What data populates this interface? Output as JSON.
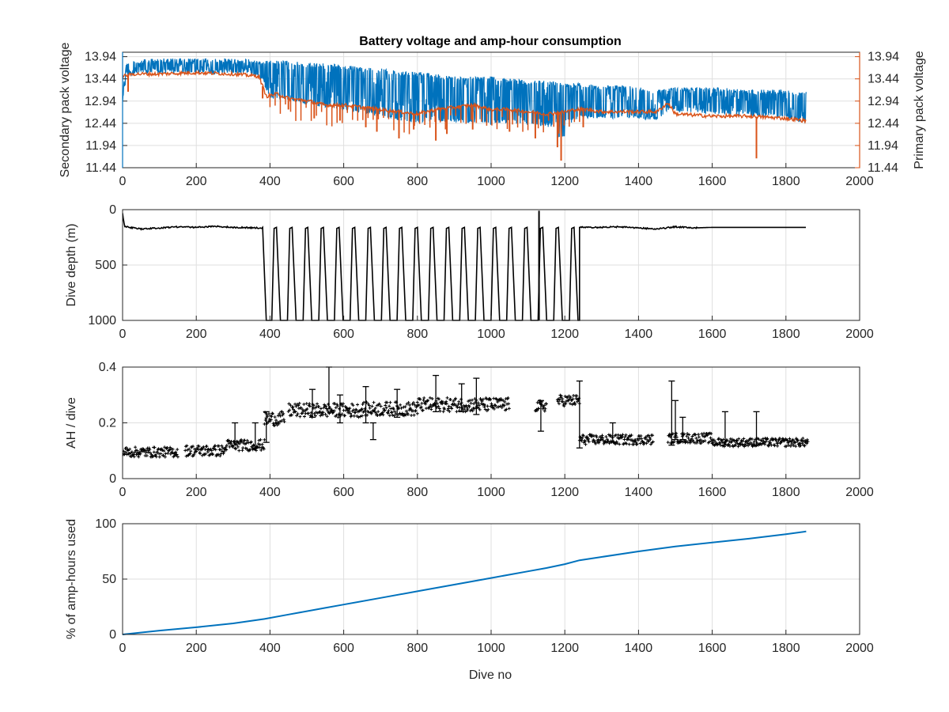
{
  "figure": {
    "title": "Battery voltage and amp-hour consumption",
    "xlabel": "Dive no"
  },
  "colors": {
    "secondary": "#0072BD",
    "primary": "#D95319",
    "black": "#000000",
    "grid": "#dfdfdf",
    "axis": "#262626"
  },
  "chart_data": [
    {
      "type": "line",
      "title": "Battery voltage and amp-hour consumption",
      "xlabel": "",
      "ylabel": "Secondary pack voltage",
      "ylabel_right": "Primary pack voltage",
      "xlim": [
        0,
        2000
      ],
      "ylim": [
        11.44,
        14.04
      ],
      "xticks": [
        0,
        200,
        400,
        600,
        800,
        1000,
        1200,
        1400,
        1600,
        1800,
        2000
      ],
      "yticks": [
        11.44,
        11.94,
        12.44,
        12.94,
        13.44,
        13.94
      ],
      "ytick_labels": [
        "11.44",
        "11.94",
        "12.44",
        "12.94",
        "13.44",
        "13.94"
      ],
      "grid": true,
      "series": [
        {
          "name": "Secondary pack voltage",
          "axis": "left",
          "color": "#0072BD",
          "x": [
            0,
            10,
            30,
            60,
            100,
            150,
            200,
            250,
            300,
            350,
            380,
            400,
            450,
            500,
            550,
            600,
            650,
            700,
            750,
            800,
            850,
            900,
            950,
            1000,
            1050,
            1100,
            1150,
            1200,
            1250,
            1300,
            1350,
            1400,
            1450,
            1480,
            1520,
            1600,
            1700,
            1800,
            1850
          ],
          "low": [
            12.9,
            13.45,
            13.55,
            13.55,
            13.55,
            13.55,
            13.55,
            13.55,
            13.55,
            13.55,
            13.4,
            13.0,
            12.95,
            12.85,
            12.8,
            12.75,
            12.65,
            12.6,
            12.5,
            12.45,
            12.5,
            12.45,
            12.45,
            12.4,
            12.45,
            12.4,
            12.35,
            12.4,
            12.55,
            12.55,
            12.55,
            12.55,
            12.5,
            12.7,
            12.7,
            12.65,
            12.6,
            12.55,
            12.45
          ],
          "high": [
            13.2,
            13.8,
            13.85,
            13.88,
            13.9,
            13.9,
            13.9,
            13.9,
            13.9,
            13.88,
            13.85,
            13.85,
            13.85,
            13.8,
            13.8,
            13.75,
            13.7,
            13.7,
            13.6,
            13.6,
            13.55,
            13.5,
            13.5,
            13.5,
            13.45,
            13.4,
            13.4,
            13.35,
            13.35,
            13.3,
            13.3,
            13.25,
            13.2,
            13.25,
            13.25,
            13.25,
            13.2,
            13.2,
            13.15
          ]
        },
        {
          "name": "Primary pack voltage",
          "axis": "right",
          "color": "#D95319",
          "x": [
            0,
            30,
            100,
            200,
            300,
            370,
            390,
            420,
            450,
            500,
            550,
            600,
            650,
            700,
            750,
            800,
            850,
            900,
            950,
            1000,
            1050,
            1100,
            1150,
            1200,
            1230,
            1260,
            1300,
            1350,
            1400,
            1450,
            1480,
            1500,
            1600,
            1700,
            1800,
            1850
          ],
          "values": [
            13.5,
            13.55,
            13.55,
            13.58,
            13.55,
            13.5,
            13.05,
            13.1,
            13.0,
            12.95,
            12.85,
            12.85,
            12.8,
            12.75,
            12.7,
            12.65,
            12.75,
            12.8,
            12.85,
            12.75,
            12.75,
            12.7,
            12.65,
            12.7,
            12.75,
            12.75,
            12.7,
            12.7,
            12.7,
            12.7,
            12.9,
            12.65,
            12.6,
            12.6,
            12.55,
            12.5
          ],
          "dips": [
            [
              15,
              13.15
            ],
            [
              380,
              13.0
            ],
            [
              450,
              12.75
            ],
            [
              520,
              12.55
            ],
            [
              590,
              12.5
            ],
            [
              660,
              12.35
            ],
            [
              690,
              12.25
            ],
            [
              750,
              12.1
            ],
            [
              790,
              12.3
            ],
            [
              850,
              12.05
            ],
            [
              880,
              12.2
            ],
            [
              950,
              12.3
            ],
            [
              1050,
              12.25
            ],
            [
              1120,
              12.1
            ],
            [
              1180,
              11.9
            ],
            [
              1190,
              11.6
            ],
            [
              1250,
              12.35
            ],
            [
              1720,
              11.65
            ]
          ]
        }
      ]
    },
    {
      "type": "line",
      "ylabel": "Dive depth (m)",
      "xlim": [
        0,
        2000
      ],
      "ylim": [
        0,
        1000
      ],
      "y_reversed": true,
      "xticks": [
        0,
        200,
        400,
        600,
        800,
        1000,
        1200,
        1400,
        1600,
        1800,
        2000
      ],
      "yticks": [
        0,
        500,
        1000
      ],
      "grid": true,
      "series": [
        {
          "color": "#000000",
          "baseline_x": [
            0,
            5,
            20,
            50,
            100,
            150,
            200,
            250,
            300,
            370,
            1240,
            1300,
            1350,
            1400,
            1450,
            1500,
            1550,
            1600,
            1700,
            1800,
            1850
          ],
          "baseline_y": [
            30,
            150,
            160,
            175,
            165,
            155,
            160,
            150,
            160,
            165,
            160,
            160,
            155,
            165,
            175,
            155,
            165,
            160,
            160,
            160,
            160
          ],
          "deep_start": 390,
          "deep_end": 1240,
          "deep_bottom": 1000,
          "deep_top": 160,
          "deep_cycles": 20,
          "spike": [
            1130,
            10
          ]
        }
      ]
    },
    {
      "type": "scatter",
      "ylabel": "AH / dive",
      "xlim": [
        0,
        2000
      ],
      "ylim": [
        0,
        0.4
      ],
      "xticks": [
        0,
        200,
        400,
        600,
        800,
        1000,
        1200,
        1400,
        1600,
        1800,
        2000
      ],
      "yticks": [
        0,
        0.2,
        0.4
      ],
      "ytick_labels": [
        "0",
        "0.2",
        "0.4"
      ],
      "grid": true,
      "series": [
        {
          "color": "#000000",
          "segments": [
            {
              "x0": 0,
              "x1": 150,
              "mean": 0.095,
              "spread": 0.018
            },
            {
              "x0": 170,
              "x1": 280,
              "mean": 0.1,
              "spread": 0.02
            },
            {
              "x0": 280,
              "x1": 385,
              "mean": 0.12,
              "spread": 0.02
            },
            {
              "x0": 385,
              "x1": 440,
              "mean": 0.215,
              "spread": 0.025
            },
            {
              "x0": 450,
              "x1": 650,
              "mean": 0.245,
              "spread": 0.025
            },
            {
              "x0": 650,
              "x1": 800,
              "mean": 0.25,
              "spread": 0.025
            },
            {
              "x0": 800,
              "x1": 1050,
              "mean": 0.265,
              "spread": 0.025
            },
            {
              "x0": 1120,
              "x1": 1150,
              "mean": 0.26,
              "spread": 0.02
            },
            {
              "x0": 1180,
              "x1": 1240,
              "mean": 0.28,
              "spread": 0.02
            },
            {
              "x0": 1240,
              "x1": 1440,
              "mean": 0.14,
              "spread": 0.018
            },
            {
              "x0": 1480,
              "x1": 1600,
              "mean": 0.145,
              "spread": 0.018
            },
            {
              "x0": 1600,
              "x1": 1860,
              "mean": 0.13,
              "spread": 0.015
            }
          ],
          "errorbars": [
            [
              305,
              0.12,
              0.2
            ],
            [
              360,
              0.11,
              0.2
            ],
            [
              390,
              0.13,
              0.24
            ],
            [
              515,
              0.22,
              0.32
            ],
            [
              560,
              0.25,
              0.4
            ],
            [
              590,
              0.2,
              0.3
            ],
            [
              660,
              0.2,
              0.33
            ],
            [
              680,
              0.14,
              0.2
            ],
            [
              745,
              0.22,
              0.32
            ],
            [
              850,
              0.24,
              0.37
            ],
            [
              920,
              0.24,
              0.34
            ],
            [
              960,
              0.23,
              0.36
            ],
            [
              1135,
              0.17,
              0.28
            ],
            [
              1240,
              0.11,
              0.35
            ],
            [
              1330,
              0.13,
              0.2
            ],
            [
              1490,
              0.12,
              0.35
            ],
            [
              1500,
              0.14,
              0.28
            ],
            [
              1520,
              0.14,
              0.22
            ],
            [
              1635,
              0.12,
              0.24
            ],
            [
              1720,
              0.12,
              0.24
            ]
          ]
        }
      ]
    },
    {
      "type": "line",
      "ylabel": "% of amp-hours used",
      "xlabel": "Dive no",
      "xlim": [
        0,
        2000
      ],
      "ylim": [
        0,
        100
      ],
      "xticks": [
        0,
        200,
        400,
        600,
        800,
        1000,
        1200,
        1400,
        1600,
        1800,
        2000
      ],
      "yticks": [
        0,
        50,
        100
      ],
      "grid": true,
      "series": [
        {
          "color": "#0072BD",
          "x": [
            0,
            100,
            200,
            300,
            385,
            450,
            550,
            600,
            700,
            800,
            900,
            1000,
            1100,
            1150,
            1200,
            1240,
            1300,
            1400,
            1500,
            1600,
            1700,
            1800,
            1855
          ],
          "values": [
            0,
            3.5,
            6.5,
            10,
            14,
            18,
            24,
            27,
            33,
            39,
            45,
            51,
            57,
            60,
            63.5,
            67,
            70,
            75,
            79.5,
            83,
            86.5,
            90.5,
            93
          ]
        }
      ]
    }
  ]
}
